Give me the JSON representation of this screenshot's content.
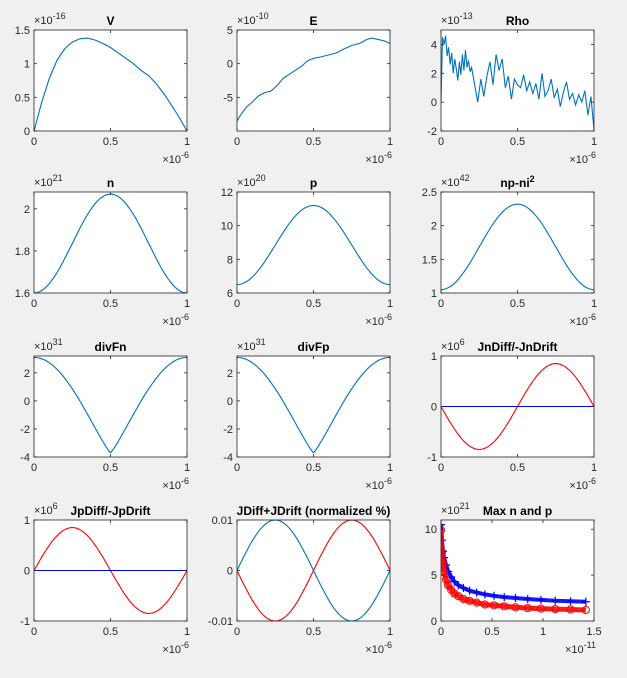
{
  "chart_data": [
    {
      "type": "line",
      "title": "V",
      "y_exponent": "-16",
      "x_exponent": "-6",
      "xlim": [
        0,
        1
      ],
      "ylim": [
        0,
        1.5
      ],
      "x_ticks": [
        "0",
        "0.5",
        "1"
      ],
      "y_ticks": [
        "0",
        "0.5",
        "1",
        "1.5"
      ],
      "x_tick_values": [
        0,
        0.5,
        1
      ],
      "y_tick_values": [
        0,
        0.5,
        1,
        1.5
      ],
      "series": [
        {
          "color": "#0072bd",
          "x": [
            0,
            0.05,
            0.1,
            0.15,
            0.2,
            0.25,
            0.3,
            0.35,
            0.4,
            0.45,
            0.5,
            0.55,
            0.6,
            0.65,
            0.7,
            0.75,
            0.8,
            0.85,
            0.9,
            0.95,
            1.0
          ],
          "y": [
            0,
            0.42,
            0.78,
            1.05,
            1.22,
            1.32,
            1.37,
            1.38,
            1.35,
            1.3,
            1.24,
            1.16,
            1.08,
            1.0,
            0.9,
            0.82,
            0.7,
            0.55,
            0.38,
            0.2,
            0
          ]
        }
      ]
    },
    {
      "type": "line",
      "title": "E",
      "y_exponent": "-10",
      "x_exponent": "-6",
      "xlim": [
        0,
        1
      ],
      "ylim": [
        -10,
        5
      ],
      "x_ticks": [
        "0",
        "0.5",
        "1"
      ],
      "y_ticks": [
        "-5",
        "0",
        "5"
      ],
      "x_tick_values": [
        0,
        0.5,
        1
      ],
      "y_tick_values": [
        -5,
        0,
        5
      ],
      "series": [
        {
          "color": "#0072bd",
          "x": [
            0,
            0.03,
            0.06,
            0.1,
            0.14,
            0.18,
            0.22,
            0.26,
            0.3,
            0.34,
            0.38,
            0.42,
            0.46,
            0.5,
            0.55,
            0.6,
            0.65,
            0.7,
            0.75,
            0.8,
            0.85,
            0.88,
            0.92,
            0.96,
            1.0
          ],
          "y": [
            -8.5,
            -7.4,
            -6.5,
            -5.7,
            -4.8,
            -4.3,
            -4.1,
            -3.3,
            -2.2,
            -1.6,
            -1.0,
            -0.4,
            0.4,
            0.8,
            1.0,
            1.3,
            1.6,
            2.2,
            2.7,
            3.0,
            3.6,
            3.8,
            3.6,
            3.4,
            3.0
          ]
        }
      ]
    },
    {
      "type": "line",
      "title": "Rho",
      "y_exponent": "-13",
      "x_exponent": "-6",
      "xlim": [
        0,
        1
      ],
      "ylim": [
        -2,
        5
      ],
      "x_ticks": [
        "0",
        "0.5",
        "1"
      ],
      "y_ticks": [
        "-2",
        "0",
        "2",
        "4"
      ],
      "x_tick_values": [
        0,
        0.5,
        1
      ],
      "y_tick_values": [
        -2,
        0,
        2,
        4
      ],
      "series": [
        {
          "color": "#0072bd",
          "x": [
            0,
            0.01,
            0.02,
            0.03,
            0.04,
            0.05,
            0.06,
            0.07,
            0.08,
            0.09,
            0.1,
            0.11,
            0.12,
            0.13,
            0.14,
            0.15,
            0.16,
            0.17,
            0.18,
            0.19,
            0.2,
            0.22,
            0.24,
            0.26,
            0.28,
            0.3,
            0.32,
            0.34,
            0.36,
            0.38,
            0.4,
            0.42,
            0.44,
            0.46,
            0.48,
            0.5,
            0.52,
            0.54,
            0.56,
            0.58,
            0.6,
            0.62,
            0.64,
            0.66,
            0.68,
            0.7,
            0.72,
            0.74,
            0.76,
            0.78,
            0.8,
            0.82,
            0.84,
            0.86,
            0.88,
            0.9,
            0.92,
            0.94,
            0.96,
            0.98,
            1.0
          ],
          "y": [
            0,
            4.5,
            4.0,
            4.6,
            3.2,
            3.8,
            2.6,
            3.4,
            2.0,
            3.0,
            2.3,
            1.5,
            2.8,
            1.9,
            3.3,
            2.2,
            3.6,
            2.4,
            2.9,
            2.1,
            2.4,
            1.2,
            0.0,
            1.6,
            0.4,
            1.8,
            2.8,
            1.2,
            3.3,
            2.2,
            3.0,
            1.0,
            1.8,
            0.2,
            1.6,
            1.2,
            1.0,
            1.9,
            0.8,
            1.4,
            0.6,
            1.3,
            0.2,
            2.0,
            0.4,
            0.8,
            1.6,
            0.3,
            0.9,
            -0.3,
            0.7,
            1.4,
            0.2,
            0.6,
            -0.2,
            0.5,
            0.0,
            0.8,
            -0.9,
            0.4,
            -1.9
          ]
        }
      ]
    },
    {
      "type": "line",
      "title": "n",
      "y_exponent": "21",
      "x_exponent": "-6",
      "xlim": [
        0,
        1
      ],
      "ylim": [
        1.6,
        2.08
      ],
      "x_ticks": [
        "0",
        "0.5",
        "1"
      ],
      "y_ticks": [
        "1.6",
        "1.8",
        "2"
      ],
      "x_tick_values": [
        0,
        0.5,
        1
      ],
      "y_tick_values": [
        1.6,
        1.8,
        2
      ],
      "series": [
        {
          "color": "#0072bd",
          "curve": "bell",
          "x": [
            0,
            0.5,
            1
          ],
          "y": [
            1.6,
            2.07,
            1.6
          ]
        }
      ]
    },
    {
      "type": "line",
      "title": "p",
      "y_exponent": "20",
      "x_exponent": "-6",
      "xlim": [
        0,
        1
      ],
      "ylim": [
        6,
        12
      ],
      "x_ticks": [
        "0",
        "0.5",
        "1"
      ],
      "y_ticks": [
        "6",
        "8",
        "10",
        "12"
      ],
      "x_tick_values": [
        0,
        0.5,
        1
      ],
      "y_tick_values": [
        6,
        8,
        10,
        12
      ],
      "series": [
        {
          "color": "#0072bd",
          "curve": "bell",
          "x": [
            0,
            0.5,
            1
          ],
          "y": [
            6.5,
            11.2,
            6.5
          ]
        }
      ]
    },
    {
      "type": "line",
      "title": "np-ni",
      "title_sup": "2",
      "y_exponent": "42",
      "x_exponent": "-6",
      "xlim": [
        0,
        1
      ],
      "ylim": [
        1,
        2.5
      ],
      "x_ticks": [
        "0",
        "0.5",
        "1"
      ],
      "y_ticks": [
        "1",
        "1.5",
        "2",
        "2.5"
      ],
      "x_tick_values": [
        0,
        0.5,
        1
      ],
      "y_tick_values": [
        1,
        1.5,
        2,
        2.5
      ],
      "series": [
        {
          "color": "#0072bd",
          "curve": "bell",
          "x": [
            0,
            0.5,
            1
          ],
          "y": [
            1.05,
            2.32,
            1.05
          ]
        }
      ]
    },
    {
      "type": "line",
      "title": "divFn",
      "y_exponent": "31",
      "x_exponent": "-6",
      "xlim": [
        0,
        1
      ],
      "ylim": [
        -4,
        3.2
      ],
      "x_ticks": [
        "0",
        "0.5",
        "1"
      ],
      "y_ticks": [
        "-4",
        "-2",
        "0",
        "2"
      ],
      "x_tick_values": [
        0,
        0.5,
        1
      ],
      "y_tick_values": [
        -4,
        -2,
        0,
        2
      ],
      "series": [
        {
          "color": "#0072bd",
          "curve": "valley",
          "x": [
            0,
            0.5,
            1
          ],
          "y": [
            3.1,
            -3.7,
            3.1
          ]
        }
      ]
    },
    {
      "type": "line",
      "title": "divFp",
      "y_exponent": "31",
      "x_exponent": "-6",
      "xlim": [
        0,
        1
      ],
      "ylim": [
        -4,
        3.2
      ],
      "x_ticks": [
        "0",
        "0.5",
        "1"
      ],
      "y_ticks": [
        "-4",
        "-2",
        "0",
        "2"
      ],
      "x_tick_values": [
        0,
        0.5,
        1
      ],
      "y_tick_values": [
        -4,
        -2,
        0,
        2
      ],
      "series": [
        {
          "color": "#0072bd",
          "curve": "valley",
          "x": [
            0,
            0.5,
            1
          ],
          "y": [
            3.1,
            -3.7,
            3.1
          ]
        }
      ]
    },
    {
      "type": "line",
      "title": "JnDiff/-JnDrift",
      "y_exponent": "6",
      "x_exponent": "-6",
      "xlim": [
        0,
        1
      ],
      "ylim": [
        -1,
        1
      ],
      "x_ticks": [
        "0",
        "0.5",
        "1"
      ],
      "y_ticks": [
        "-1",
        "0",
        "1"
      ],
      "x_tick_values": [
        0,
        0.5,
        1
      ],
      "y_tick_values": [
        -1,
        0,
        1
      ],
      "series": [
        {
          "color": "#ff0000",
          "curve": "sine",
          "amplitude": -0.85,
          "x": [
            0,
            1
          ],
          "y": [
            0,
            0
          ]
        },
        {
          "color": "#0000ff",
          "x": [
            0,
            1
          ],
          "y": [
            0,
            0
          ]
        }
      ]
    },
    {
      "type": "line",
      "title": "JpDiff/-JpDrift",
      "y_exponent": "6",
      "x_exponent": "-6",
      "xlim": [
        0,
        1
      ],
      "ylim": [
        -1,
        1
      ],
      "x_ticks": [
        "0",
        "0.5",
        "1"
      ],
      "y_ticks": [
        "-1",
        "0",
        "1"
      ],
      "x_tick_values": [
        0,
        0.5,
        1
      ],
      "y_tick_values": [
        -1,
        0,
        1
      ],
      "series": [
        {
          "color": "#ff0000",
          "curve": "sine",
          "amplitude": 0.85,
          "x": [
            0,
            1
          ],
          "y": [
            0,
            0
          ]
        },
        {
          "color": "#0000ff",
          "x": [
            0,
            1
          ],
          "y": [
            0,
            0
          ]
        }
      ]
    },
    {
      "type": "line",
      "title": "JDiff+JDrift (normalized %)",
      "x_exponent": "-6",
      "xlim": [
        0,
        1
      ],
      "ylim": [
        -0.01,
        0.01
      ],
      "x_ticks": [
        "0",
        "0.5",
        "1"
      ],
      "y_ticks": [
        "-0.01",
        "0",
        "0.01"
      ],
      "x_tick_values": [
        0,
        0.5,
        1
      ],
      "y_tick_values": [
        -0.01,
        0,
        0.01
      ],
      "series": [
        {
          "color": "#0072bd",
          "curve": "sine",
          "amplitude": 0.01,
          "x": [
            0,
            1
          ],
          "y": [
            0,
            0
          ]
        },
        {
          "color": "#ff0000",
          "curve": "sine",
          "amplitude": -0.01,
          "x": [
            0,
            1
          ],
          "y": [
            0,
            0
          ]
        }
      ]
    },
    {
      "type": "scatter",
      "title": "Max n and p",
      "y_exponent": "21",
      "x_exponent": "-11",
      "xlim": [
        0,
        1.5
      ],
      "ylim": [
        0,
        11
      ],
      "x_ticks": [
        "0",
        "0.5",
        "1",
        "1.5"
      ],
      "y_ticks": [
        "0",
        "5",
        "10"
      ],
      "x_tick_values": [
        0,
        0.5,
        1,
        1.5
      ],
      "y_tick_values": [
        0,
        5,
        10
      ],
      "series": [
        {
          "color": "#0000ff",
          "marker": "plus",
          "x": [
            0.0,
            0.01,
            0.02,
            0.03,
            0.05,
            0.07,
            0.1,
            0.13,
            0.17,
            0.22,
            0.28,
            0.35,
            0.43,
            0.52,
            0.62,
            0.73,
            0.85,
            0.98,
            1.12,
            1.27,
            1.42
          ],
          "y": [
            10.5,
            8.8,
            7.6,
            6.9,
            6.1,
            5.4,
            4.8,
            4.3,
            3.9,
            3.6,
            3.3,
            3.1,
            2.9,
            2.75,
            2.6,
            2.5,
            2.4,
            2.3,
            2.2,
            2.15,
            2.1
          ]
        },
        {
          "color": "#ff0000",
          "marker": "circle",
          "x": [
            0.0,
            0.01,
            0.02,
            0.03,
            0.05,
            0.07,
            0.1,
            0.13,
            0.17,
            0.22,
            0.28,
            0.35,
            0.43,
            0.52,
            0.62,
            0.73,
            0.85,
            0.98,
            1.12,
            1.27,
            1.42
          ],
          "y": [
            9.9,
            7.5,
            6.2,
            5.3,
            4.5,
            3.9,
            3.4,
            3.0,
            2.7,
            2.4,
            2.2,
            2.0,
            1.8,
            1.7,
            1.6,
            1.5,
            1.4,
            1.35,
            1.3,
            1.25,
            1.2
          ]
        }
      ]
    }
  ]
}
